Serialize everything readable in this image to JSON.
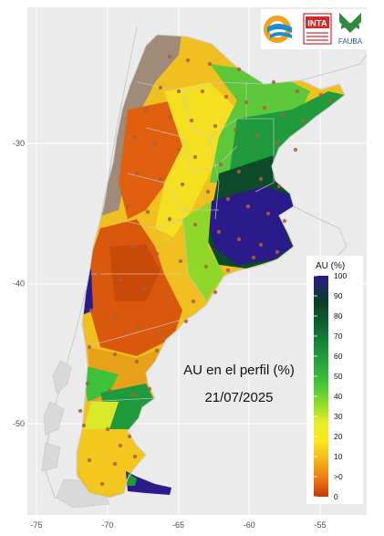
{
  "map": {
    "annotation_title": "AU en el perfil (%)",
    "annotation_date": "21/07/2025",
    "background_color": "#ebebeb",
    "x_ticks": [
      "-75",
      "-70",
      "-65",
      "-60",
      "-55"
    ],
    "y_ticks": [
      "-30",
      "-40",
      "-50"
    ],
    "x_tick_values": [
      -75,
      -70,
      -65,
      -60,
      -55
    ],
    "y_tick_values": [
      -30,
      -40,
      -50
    ]
  },
  "legend": {
    "title": "AU (%)",
    "labels": [
      "100",
      "90",
      "80",
      "70",
      "60",
      "50",
      "40",
      "30",
      "20",
      "10",
      ">0",
      "0"
    ],
    "colors": [
      "#2b1a8a",
      "#0b3d24",
      "#0f6b33",
      "#1f9a3c",
      "#3ec23a",
      "#8fdc2a",
      "#d9ef26",
      "#fbe61e",
      "#f5b71a",
      "#ea7a12",
      "#d6460c",
      "#c23a06"
    ]
  },
  "logos": {
    "inta_text": "INTA",
    "fauba_text": "FAUBA"
  }
}
